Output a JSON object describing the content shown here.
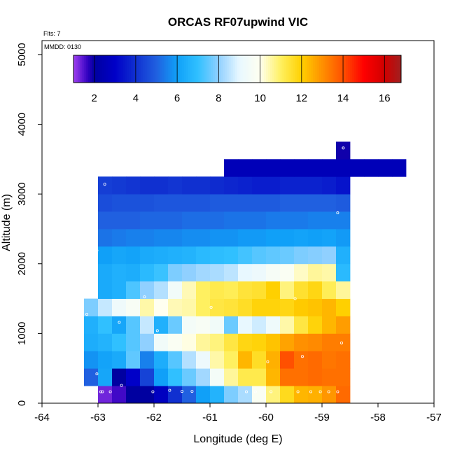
{
  "chart_data": {
    "type": "heatmap",
    "title": "ORCAS RF07upwind VIC",
    "flights_note": "Flts: 7",
    "date_note": "MMDD: 0130",
    "xlabel": "Longitude (deg E)",
    "ylabel": "Altitude (m)",
    "xlim": [
      -64,
      -57
    ],
    "ylim": [
      0,
      5200
    ],
    "xticks": [
      -64,
      -63,
      -62,
      -61,
      -60,
      -59,
      -58,
      -57
    ],
    "yticks": [
      0,
      1000,
      2000,
      3000,
      4000,
      5000
    ],
    "cell_width_deg": 0.25,
    "cell_height_m": 250,
    "colorbar": {
      "range": [
        1,
        16.8
      ],
      "ticks": [
        2,
        4,
        6,
        8,
        10,
        12,
        14,
        16
      ],
      "stops": [
        {
          "v": 1.0,
          "c": "#a040f0"
        },
        {
          "v": 1.7,
          "c": "#3000c0"
        },
        {
          "v": 2.0,
          "c": "#0000a0"
        },
        {
          "v": 3.0,
          "c": "#0000c8"
        },
        {
          "v": 4.0,
          "c": "#1030d0"
        },
        {
          "v": 5.0,
          "c": "#2060e0"
        },
        {
          "v": 6.0,
          "c": "#10a0f8"
        },
        {
          "v": 7.0,
          "c": "#30c0ff"
        },
        {
          "v": 8.0,
          "c": "#90d0ff"
        },
        {
          "v": 9.0,
          "c": "#e8f8ff"
        },
        {
          "v": 10.0,
          "c": "#fffff0"
        },
        {
          "v": 11.0,
          "c": "#fff060"
        },
        {
          "v": 12.0,
          "c": "#ffd000"
        },
        {
          "v": 13.0,
          "c": "#ff9000"
        },
        {
          "v": 14.0,
          "c": "#ff5000"
        },
        {
          "v": 15.0,
          "c": "#ff0000"
        },
        {
          "v": 16.0,
          "c": "#d00000"
        },
        {
          "v": 16.8,
          "c": "#a02020"
        }
      ]
    },
    "rows": [
      {
        "alt": 0,
        "lon0": -63.0,
        "v": [
          1.3,
          1.6,
          2.0,
          2.0,
          2.8,
          4.0,
          5.0,
          6.0,
          6.6,
          7.8,
          8.3,
          9.8,
          10.8,
          11.7,
          12.4,
          12.5,
          12.9,
          13.6
        ]
      },
      {
        "alt": 250,
        "lon0": -63.25,
        "v": [
          5.0,
          6.2,
          2.0,
          3.0,
          4.4,
          6.0,
          7.0,
          7.6,
          8.2,
          9.5,
          10.6,
          11.2,
          11.2,
          12.4,
          13.5,
          13.5,
          13.6,
          13.5,
          13.5
        ]
      },
      {
        "alt": 500,
        "lon0": -63.25,
        "v": [
          5.8,
          6.1,
          6.3,
          7.5,
          5.5,
          6.4,
          7.4,
          8.4,
          9.2,
          10.5,
          11.0,
          12.4,
          11.6,
          12.5,
          14.0,
          13.5,
          13.6,
          13.4,
          13.5
        ]
      },
      {
        "alt": 750,
        "lon0": -63.25,
        "v": [
          6.4,
          6.6,
          7.0,
          7.4,
          8.0,
          9.4,
          9.8,
          10.1,
          10.6,
          10.8,
          11.3,
          11.8,
          11.9,
          12.2,
          12.7,
          13.0,
          13.1,
          13.3,
          13.3
        ]
      },
      {
        "alt": 1000,
        "lon0": -63.25,
        "v": [
          6.5,
          7.0,
          6.2,
          7.4,
          8.6,
          6.5,
          7.6,
          9.5,
          9.7,
          9.4,
          7.6,
          9.0,
          8.7,
          9.3,
          10.5,
          11.3,
          11.9,
          12.4,
          12.8
        ]
      },
      {
        "alt": 1250,
        "lon0": -63.25,
        "v": [
          7.8,
          8.6,
          9.3,
          9.7,
          10.5,
          10.0,
          10.4,
          10.5,
          11.0,
          11.3,
          11.4,
          11.6,
          11.9,
          11.9,
          11.8,
          12.1,
          12.2,
          12.4,
          12.0
        ]
      },
      {
        "alt": 1500,
        "lon0": -63.0,
        "v": [
          6.3,
          6.5,
          7.3,
          8.0,
          8.4,
          9.4,
          10.4,
          11.0,
          11.2,
          11.1,
          11.4,
          11.5,
          12.0,
          10.8,
          11.5,
          11.8,
          11.1,
          10.6
        ]
      },
      {
        "alt": 1750,
        "lon0": -63.0,
        "v": [
          6.3,
          6.5,
          6.4,
          6.8,
          7.1,
          7.8,
          8.0,
          8.2,
          8.3,
          8.5,
          9.0,
          9.2,
          9.6,
          9.8,
          10.3,
          10.6,
          10.5,
          6.8
        ]
      },
      {
        "alt": 2000,
        "lon0": -63.0,
        "v": [
          6.0,
          6.2,
          6.1,
          6.3,
          6.4,
          6.5,
          6.6,
          6.8,
          6.9,
          7.0,
          7.2,
          7.4,
          7.5,
          7.6,
          7.8,
          7.9,
          8.0,
          6.5
        ]
      },
      {
        "alt": 2250,
        "lon0": -63.0,
        "v": [
          5.3,
          5.4,
          5.5,
          5.5,
          5.6,
          5.6,
          5.7,
          5.7,
          5.8,
          5.8,
          5.9,
          5.9,
          6.0,
          6.0,
          6.1,
          6.0,
          6.1,
          5.9
        ]
      },
      {
        "alt": 2500,
        "lon0": -63.0,
        "v": [
          5.0,
          5.0,
          5.0,
          5.1,
          5.1,
          5.1,
          5.2,
          5.2,
          5.2,
          5.3,
          5.3,
          5.3,
          5.4,
          5.4,
          5.4,
          5.5,
          5.5,
          5.5
        ]
      },
      {
        "alt": 2750,
        "lon0": -63.0,
        "v": [
          4.6,
          4.7,
          4.7,
          4.7,
          4.8,
          4.8,
          4.8,
          4.8,
          4.9,
          4.9,
          4.9,
          4.9,
          4.9,
          5.0,
          5.0,
          5.0,
          5.0,
          4.9
        ]
      },
      {
        "alt": 3000,
        "lon0": -63.0,
        "v": [
          4.3,
          4.2,
          4.1,
          4.0,
          4.0,
          4.1,
          4.0,
          4.0,
          3.9,
          3.8,
          3.7,
          3.6,
          3.6,
          3.7,
          3.7,
          3.7,
          3.6,
          3.4
        ]
      },
      {
        "alt": 3250,
        "lon0": -60.75,
        "v": [
          2.6,
          2.6,
          2.6,
          2.6,
          2.6,
          2.6,
          2.6,
          2.6,
          2.6,
          2.6,
          2.6,
          2.6,
          2.6
        ]
      },
      {
        "alt": 3500,
        "lon0": -58.75,
        "v": [
          1.9
        ]
      }
    ],
    "sample_points": [
      [
        -62.95,
        165
      ],
      [
        -62.92,
        165
      ],
      [
        -62.78,
        165
      ],
      [
        -62.58,
        255
      ],
      [
        -62.02,
        165
      ],
      [
        -61.72,
        185
      ],
      [
        -61.5,
        170
      ],
      [
        -61.32,
        170
      ],
      [
        -60.35,
        165
      ],
      [
        -60.19,
        165
      ],
      [
        -59.91,
        165
      ],
      [
        -59.43,
        165
      ],
      [
        -59.2,
        165
      ],
      [
        -59.03,
        165
      ],
      [
        -58.88,
        165
      ],
      [
        -58.72,
        165
      ],
      [
        -63.02,
        420
      ],
      [
        -59.97,
        595
      ],
      [
        -59.35,
        670
      ],
      [
        -58.65,
        865
      ],
      [
        -63.2,
        1275
      ],
      [
        -62.62,
        1160
      ],
      [
        -61.94,
        1040
      ],
      [
        -62.17,
        1525
      ],
      [
        -60.98,
        1375
      ],
      [
        -59.48,
        1500
      ],
      [
        -63.02,
        2190
      ],
      [
        -58.72,
        2730
      ],
      [
        -62.88,
        3140
      ],
      [
        -58.62,
        3660
      ]
    ]
  }
}
